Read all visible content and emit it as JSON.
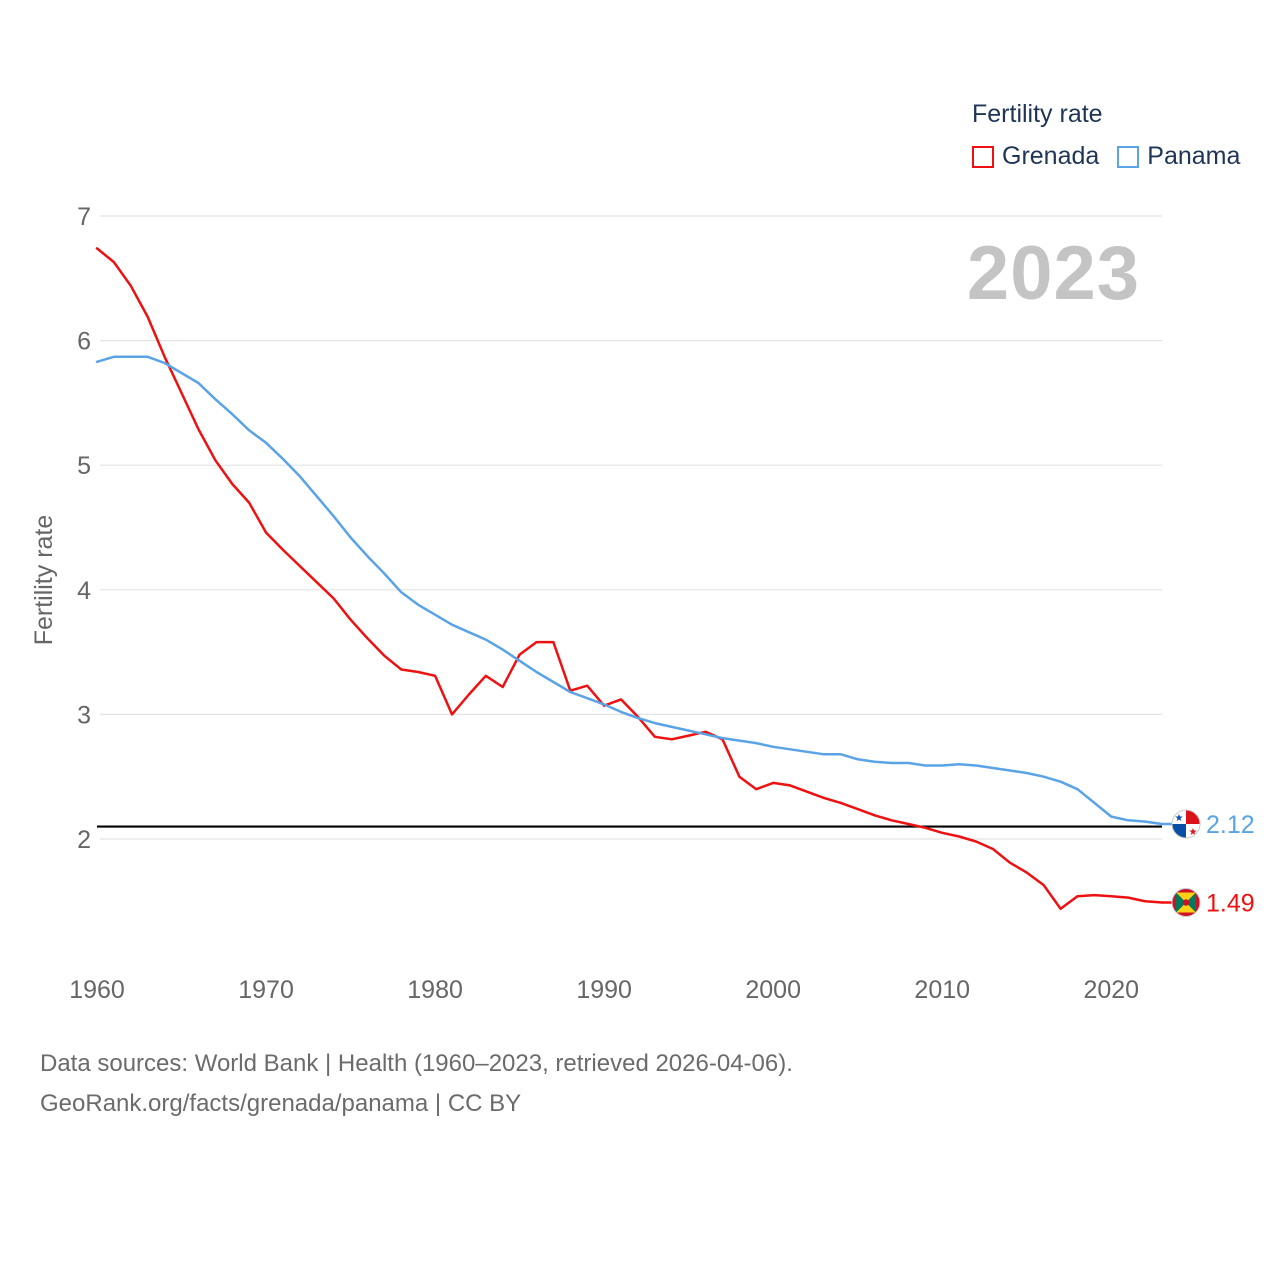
{
  "colors": {
    "grenada": "#ee1111",
    "panama": "#5aa3e6",
    "grid": "#e4e4e4",
    "axis_text": "#666666",
    "reference": "#000000"
  },
  "legend": {
    "title": "Fertility rate"
  },
  "year_watermark": "2023",
  "footer": {
    "line1": "Data sources: World Bank | Health (1960–2023, retrieved 2026-04-06).",
    "line2": "GeoRank.org/facts/grenada/panama | CC BY"
  },
  "chart_data": {
    "type": "line",
    "title": "",
    "xlabel": "",
    "ylabel": "Fertility rate",
    "xlim": [
      1960,
      2023
    ],
    "ylim": [
      1.0,
      7.0
    ],
    "xticks": [
      "1960",
      "1970",
      "1980",
      "1990",
      "2000",
      "2010",
      "2020"
    ],
    "yticks": [
      "2",
      "3",
      "4",
      "5",
      "6",
      "7"
    ],
    "reference_line": 2.1,
    "grid": true,
    "legend_position": "top-right",
    "x": [
      1960,
      1961,
      1962,
      1963,
      1964,
      1965,
      1966,
      1967,
      1968,
      1969,
      1970,
      1971,
      1972,
      1973,
      1974,
      1975,
      1976,
      1977,
      1978,
      1979,
      1980,
      1981,
      1982,
      1983,
      1984,
      1985,
      1986,
      1987,
      1988,
      1989,
      1990,
      1991,
      1992,
      1993,
      1994,
      1995,
      1996,
      1997,
      1998,
      1999,
      2000,
      2001,
      2002,
      2003,
      2004,
      2005,
      2006,
      2007,
      2008,
      2009,
      2010,
      2011,
      2012,
      2013,
      2014,
      2015,
      2016,
      2017,
      2018,
      2019,
      2020,
      2021,
      2022,
      2023
    ],
    "series": [
      {
        "name": "Grenada",
        "end_label": "1.49",
        "values": [
          6.74,
          6.63,
          6.44,
          6.19,
          5.87,
          5.58,
          5.29,
          5.04,
          4.85,
          4.7,
          4.46,
          4.32,
          4.19,
          4.06,
          3.93,
          3.76,
          3.61,
          3.47,
          3.36,
          3.34,
          3.31,
          3.0,
          3.16,
          3.31,
          3.22,
          3.48,
          3.58,
          3.58,
          3.19,
          3.23,
          3.07,
          3.12,
          2.98,
          2.82,
          2.8,
          2.83,
          2.86,
          2.8,
          2.5,
          2.4,
          2.45,
          2.43,
          2.38,
          2.33,
          2.29,
          2.24,
          2.19,
          2.15,
          2.12,
          2.09,
          2.05,
          2.02,
          1.98,
          1.92,
          1.81,
          1.73,
          1.63,
          1.44,
          1.54,
          1.55,
          1.54,
          1.53,
          1.5,
          1.49
        ]
      },
      {
        "name": "Panama",
        "end_label": "2.12",
        "values": [
          5.83,
          5.87,
          5.87,
          5.87,
          5.82,
          5.74,
          5.66,
          5.53,
          5.41,
          5.28,
          5.18,
          5.05,
          4.91,
          4.75,
          4.59,
          4.42,
          4.27,
          4.13,
          3.98,
          3.88,
          3.8,
          3.72,
          3.66,
          3.6,
          3.52,
          3.43,
          3.34,
          3.26,
          3.18,
          3.13,
          3.08,
          3.02,
          2.97,
          2.93,
          2.9,
          2.87,
          2.84,
          2.81,
          2.79,
          2.77,
          2.74,
          2.72,
          2.7,
          2.68,
          2.68,
          2.64,
          2.62,
          2.61,
          2.61,
          2.59,
          2.59,
          2.6,
          2.59,
          2.57,
          2.55,
          2.53,
          2.5,
          2.46,
          2.4,
          2.29,
          2.18,
          2.15,
          2.14,
          2.12
        ]
      }
    ]
  }
}
